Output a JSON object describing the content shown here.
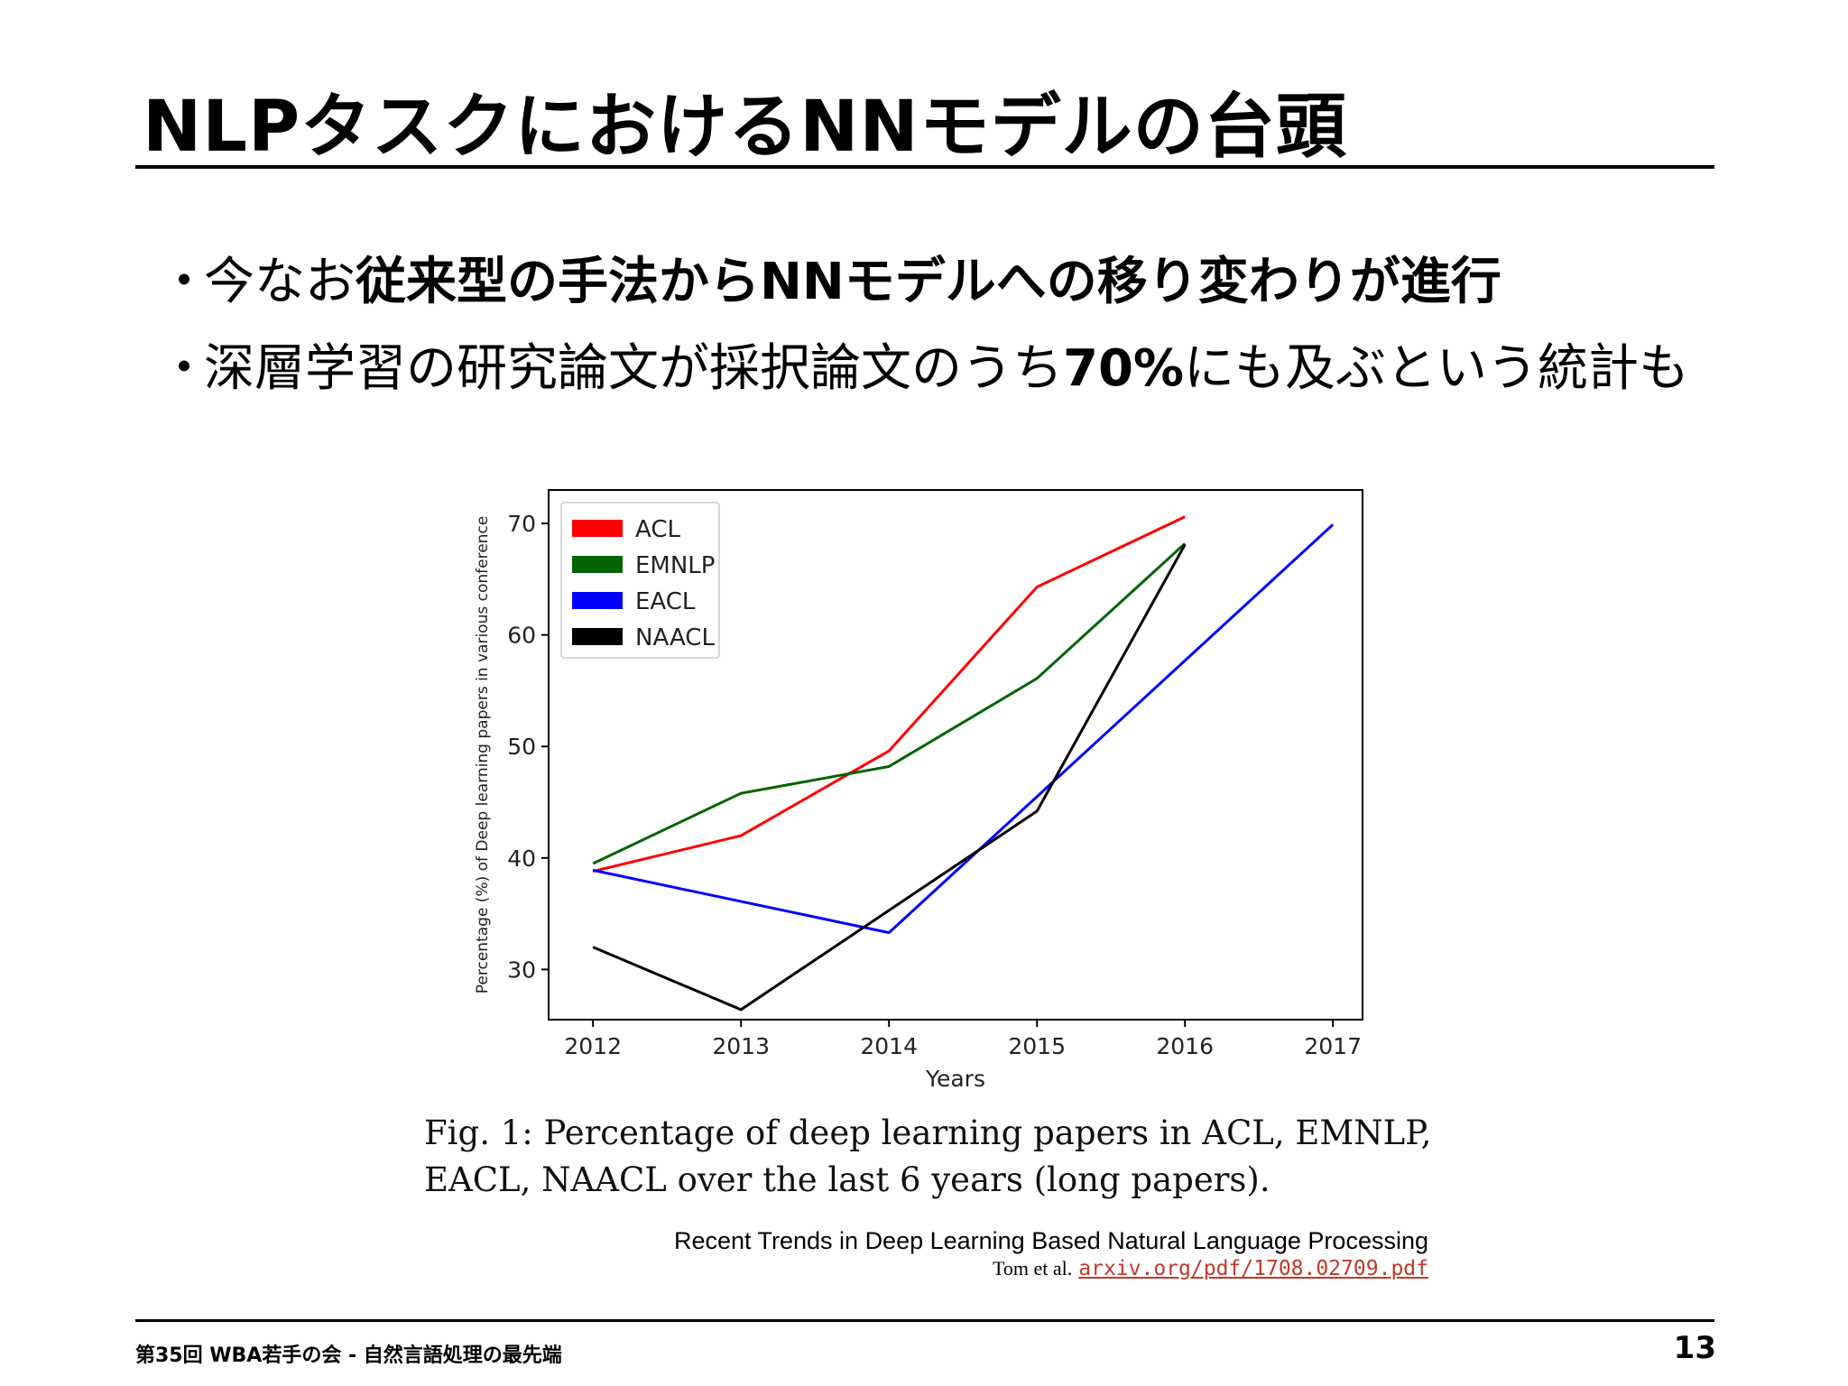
{
  "slide": {
    "title": "NLPタスクにおけるNNモデルの台頭",
    "bullets": [
      {
        "marker": "・",
        "plain": "今なお",
        "bold": "従来型の手法からNNモデルへの移り変わりが進行",
        "tail": ""
      },
      {
        "marker": "・",
        "plain": "深層学習の研究論文が採択論文のうち",
        "bold": "70%",
        "tail": "にも及ぶという統計も"
      }
    ]
  },
  "figure": {
    "caption_line1": "Fig. 1: Percentage of deep learning papers in ACL, EMNLP,",
    "caption_line2": "EACL, NAACL over the last 6 years (long papers).",
    "source_title": "Recent Trends in Deep Learning Based Natural Language Processing",
    "source_author": "Tom et al.",
    "source_link": "arxiv.org/pdf/1708.02709.pdf"
  },
  "chart_data": {
    "type": "line",
    "xlabel": "Years",
    "ylabel": "Percentage (%) of Deep learning papers in various conference",
    "x": [
      2012,
      2013,
      2014,
      2015,
      2016,
      2017
    ],
    "xlim": [
      2011.7,
      2017.2
    ],
    "ylim": [
      25.5,
      73
    ],
    "yticks": [
      30,
      40,
      50,
      60,
      70
    ],
    "grid": false,
    "legend": "top-left",
    "series": [
      {
        "name": "ACL",
        "color": "#ff0000",
        "points": [
          [
            2012,
            38.8
          ],
          [
            2013,
            42.0
          ],
          [
            2014,
            49.6
          ],
          [
            2015,
            64.3
          ],
          [
            2016,
            70.6
          ]
        ]
      },
      {
        "name": "EMNLP",
        "color": "#006400",
        "points": [
          [
            2012,
            39.5
          ],
          [
            2013,
            45.8
          ],
          [
            2014,
            48.2
          ],
          [
            2015,
            56.1
          ],
          [
            2016,
            68.2
          ]
        ]
      },
      {
        "name": "EACL",
        "color": "#0000ff",
        "points": [
          [
            2012,
            38.9
          ],
          [
            2014,
            33.3
          ],
          [
            2017,
            69.9
          ]
        ]
      },
      {
        "name": "NAACL",
        "color": "#000000",
        "points": [
          [
            2012,
            32.0
          ],
          [
            2013,
            26.4
          ],
          [
            2015,
            44.2
          ],
          [
            2016,
            68.1
          ]
        ]
      }
    ]
  },
  "footer": {
    "text": "第35回 WBA若手の会 - 自然言語処理の最先端",
    "page": "13"
  }
}
